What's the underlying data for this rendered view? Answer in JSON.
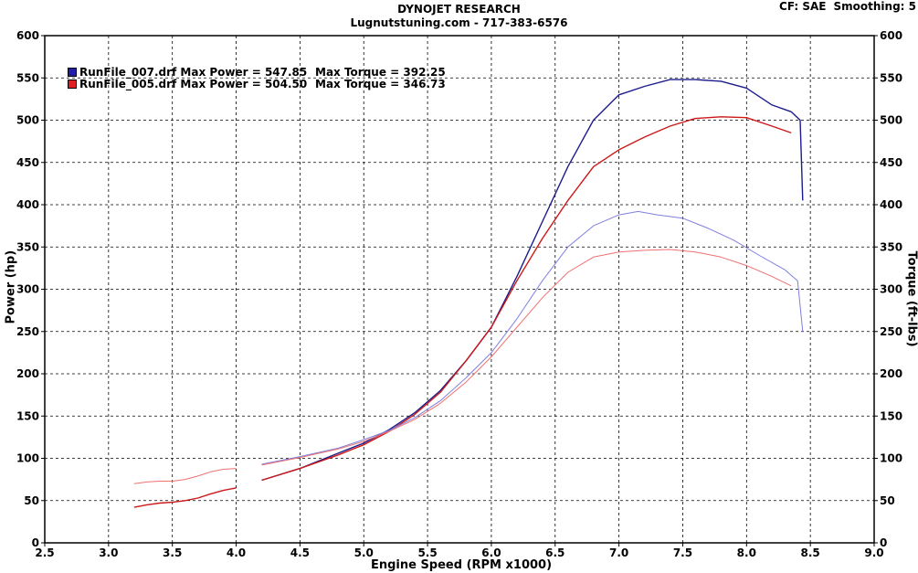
{
  "header": {
    "title": "DYNOJET RESEARCH",
    "subtitle": "Lugnutstuning.com - 717-383-6576",
    "cf": "CF: SAE",
    "smoothing": "Smoothing: 5"
  },
  "legend": [
    {
      "file": "RunFile_007.drf Max Power = 547.85",
      "torque": "Max Torque = 392.25",
      "color": "#1f1fa8"
    },
    {
      "file": "RunFile_005.drf Max Power = 504.50",
      "torque": "Max Torque = 346.73",
      "color": "#e02020"
    }
  ],
  "chart_data": {
    "type": "line",
    "xlabel": "Engine Speed (RPM x1000)",
    "ylabel_left": "Power (hp)",
    "ylabel_right": "Torque (ft-lbs)",
    "xlim": [
      2.5,
      9.0
    ],
    "ylim": [
      0,
      600
    ],
    "xticks": [
      "2.5",
      "3.0",
      "3.5",
      "4.0",
      "4.5",
      "5.0",
      "5.5",
      "6.0",
      "6.5",
      "7.0",
      "7.5",
      "8.0",
      "8.5",
      "9.0"
    ],
    "yticks": [
      "0",
      "50",
      "100",
      "150",
      "200",
      "250",
      "300",
      "350",
      "400",
      "450",
      "500",
      "550",
      "600"
    ],
    "grid": true,
    "series": [
      {
        "name": "RunFile_007.drf Power",
        "color": "#1c1c8c",
        "width": 1.4,
        "x": [
          4.2,
          4.5,
          4.8,
          5.0,
          5.2,
          5.4,
          5.6,
          5.8,
          6.0,
          6.2,
          6.4,
          6.6,
          6.8,
          7.0,
          7.2,
          7.4,
          7.6,
          7.8,
          8.0,
          8.2,
          8.35,
          8.42,
          8.44
        ],
        "y": [
          74,
          88,
          106,
          118,
          134,
          154,
          180,
          215,
          255,
          315,
          380,
          445,
          500,
          530,
          540,
          548,
          548,
          546,
          538,
          518,
          510,
          500,
          405
        ]
      },
      {
        "name": "RunFile_005.drf Power",
        "color": "#cc1818",
        "width": 1.4,
        "x": [
          3.2,
          3.3,
          3.4,
          3.5,
          3.6,
          3.7,
          3.8,
          3.9,
          4.0
        ],
        "y": [
          42,
          45,
          47,
          48,
          50,
          53,
          58,
          62,
          65
        ]
      },
      {
        "name": "RunFile_005.drf Power",
        "color": "#cc1818",
        "width": 1.4,
        "x": [
          4.2,
          4.5,
          4.8,
          5.0,
          5.2,
          5.4,
          5.6,
          5.8,
          6.0,
          6.2,
          6.4,
          6.6,
          6.8,
          7.0,
          7.2,
          7.4,
          7.6,
          7.8,
          8.0,
          8.2,
          8.35
        ],
        "y": [
          74,
          88,
          104,
          116,
          132,
          152,
          178,
          215,
          255,
          310,
          360,
          405,
          445,
          465,
          480,
          493,
          502,
          504,
          503,
          493,
          485
        ]
      },
      {
        "name": "RunFile_007.drf Torque",
        "color": "#7f7fe0",
        "width": 1,
        "x": [
          4.2,
          4.5,
          4.8,
          5.0,
          5.2,
          5.4,
          5.6,
          5.8,
          6.0,
          6.2,
          6.4,
          6.6,
          6.8,
          7.0,
          7.15,
          7.3,
          7.5,
          7.7,
          7.9,
          8.1,
          8.3,
          8.4,
          8.44
        ],
        "y": [
          93,
          102,
          112,
          122,
          133,
          148,
          168,
          195,
          225,
          265,
          310,
          350,
          375,
          388,
          392,
          388,
          384,
          372,
          358,
          340,
          323,
          310,
          250
        ]
      },
      {
        "name": "RunFile_005.drf Torque",
        "color": "#f07070",
        "width": 1,
        "x": [
          3.2,
          3.3,
          3.4,
          3.5,
          3.6,
          3.7,
          3.8,
          3.9,
          4.0
        ],
        "y": [
          70,
          72,
          73,
          73,
          75,
          79,
          84,
          87,
          88
        ]
      },
      {
        "name": "RunFile_005.drf Torque",
        "color": "#f07070",
        "width": 1,
        "x": [
          4.2,
          4.5,
          4.8,
          5.0,
          5.2,
          5.4,
          5.6,
          5.8,
          6.0,
          6.2,
          6.4,
          6.6,
          6.8,
          7.0,
          7.2,
          7.4,
          7.6,
          7.8,
          8.0,
          8.2,
          8.35
        ],
        "y": [
          92,
          101,
          111,
          120,
          132,
          146,
          165,
          190,
          220,
          255,
          290,
          320,
          338,
          344,
          346,
          347,
          344,
          338,
          328,
          315,
          304
        ]
      }
    ]
  }
}
